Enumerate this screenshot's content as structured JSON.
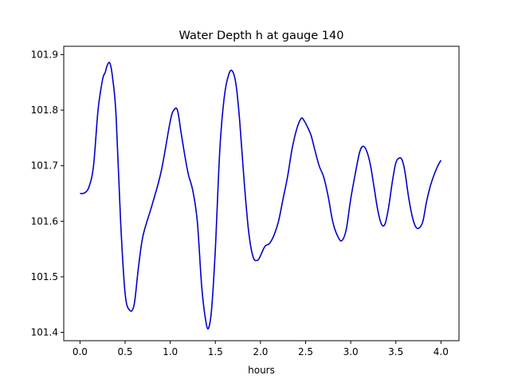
{
  "chart_data": {
    "type": "line",
    "title": "Water Depth h at gauge 140",
    "xlabel": "hours",
    "ylabel": "",
    "xlim": [
      -0.18,
      4.2
    ],
    "ylim": [
      101.385,
      101.915
    ],
    "xticks": [
      0.0,
      0.5,
      1.0,
      1.5,
      2.0,
      2.5,
      3.0,
      3.5,
      4.0
    ],
    "xtick_labels": [
      "0.0",
      "0.5",
      "1.0",
      "1.5",
      "2.0",
      "2.5",
      "3.0",
      "3.5",
      "4.0"
    ],
    "yticks": [
      101.4,
      101.5,
      101.6,
      101.7,
      101.8,
      101.9
    ],
    "ytick_labels": [
      "101.4",
      "101.5",
      "101.6",
      "101.7",
      "101.8",
      "101.9"
    ],
    "grid": false,
    "color": "#0000cc",
    "series": [
      {
        "name": "",
        "x": [
          0.0,
          0.05,
          0.1,
          0.15,
          0.2,
          0.25,
          0.28,
          0.3,
          0.33,
          0.36,
          0.4,
          0.45,
          0.5,
          0.55,
          0.6,
          0.65,
          0.7,
          0.8,
          0.9,
          1.0,
          1.04,
          1.08,
          1.12,
          1.16,
          1.2,
          1.25,
          1.3,
          1.35,
          1.4,
          1.43,
          1.46,
          1.5,
          1.55,
          1.6,
          1.65,
          1.69,
          1.73,
          1.77,
          1.82,
          1.87,
          1.92,
          1.97,
          2.0,
          2.05,
          2.1,
          2.15,
          2.2,
          2.25,
          2.3,
          2.35,
          2.4,
          2.45,
          2.48,
          2.52,
          2.56,
          2.6,
          2.65,
          2.7,
          2.75,
          2.8,
          2.85,
          2.9,
          2.95,
          3.0,
          3.05,
          3.1,
          3.14,
          3.18,
          3.22,
          3.26,
          3.3,
          3.34,
          3.38,
          3.42,
          3.46,
          3.5,
          3.54,
          3.57,
          3.6,
          3.64,
          3.68,
          3.72,
          3.76,
          3.8,
          3.84,
          3.88,
          3.92,
          3.96,
          4.0
        ],
        "y": [
          101.65,
          101.651,
          101.662,
          101.7,
          101.8,
          101.855,
          101.868,
          101.88,
          101.885,
          101.86,
          101.79,
          101.6,
          101.47,
          101.44,
          101.45,
          101.52,
          101.575,
          101.63,
          101.69,
          101.78,
          101.8,
          101.8,
          101.76,
          101.72,
          101.685,
          101.655,
          101.6,
          101.48,
          101.415,
          101.41,
          101.445,
          101.55,
          101.73,
          101.825,
          101.865,
          101.87,
          101.845,
          101.78,
          101.67,
          101.58,
          101.535,
          101.53,
          101.538,
          101.555,
          101.56,
          101.575,
          101.6,
          101.64,
          101.68,
          101.73,
          101.765,
          101.785,
          101.782,
          101.77,
          101.755,
          101.73,
          101.7,
          101.68,
          101.645,
          101.6,
          101.575,
          101.565,
          101.585,
          101.64,
          101.685,
          101.725,
          101.735,
          101.725,
          101.7,
          101.66,
          101.62,
          101.595,
          101.595,
          101.625,
          101.67,
          101.705,
          101.714,
          101.71,
          101.69,
          101.645,
          101.61,
          101.59,
          101.588,
          101.6,
          101.635,
          101.662,
          101.682,
          101.698,
          101.71
        ]
      }
    ]
  }
}
